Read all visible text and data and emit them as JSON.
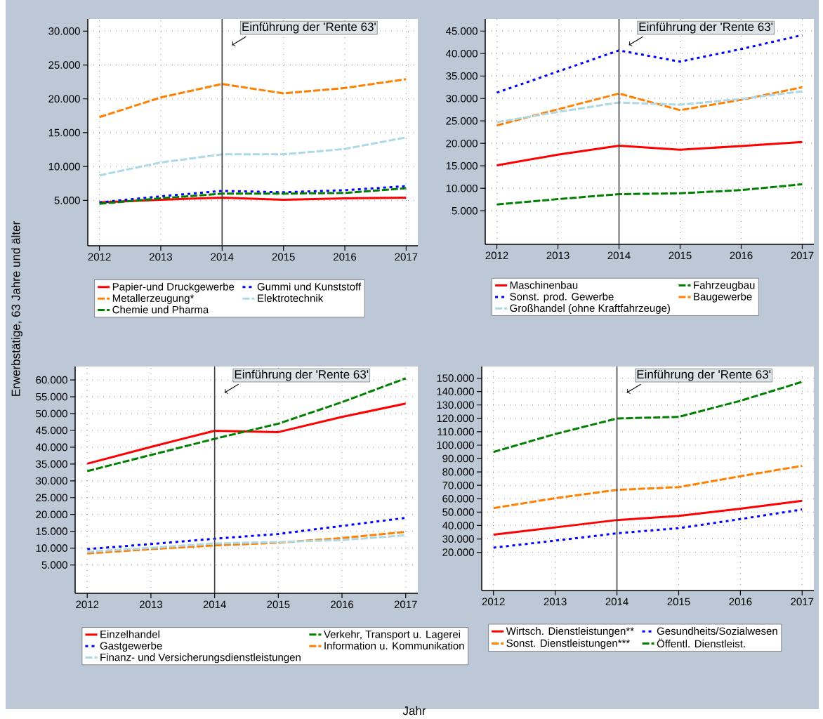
{
  "chart_data": [
    {
      "type": "line",
      "ylabel": "Erwerbstätige, 63 Jahre und älter",
      "x": [
        2012,
        2013,
        2014,
        2015,
        2016,
        2017
      ],
      "xlim": [
        2011.81,
        2017.19
      ],
      "ylim": [
        -1700,
        31800
      ],
      "xticks": [
        2012,
        2013,
        2014,
        2015,
        2016,
        2017
      ],
      "yticks": [
        {
          "value": 5000,
          "label": "5.000"
        },
        {
          "value": 10000,
          "label": "10.000"
        },
        {
          "value": 15000,
          "label": "15.000"
        },
        {
          "value": 20000,
          "label": "20.000"
        },
        {
          "value": 25000,
          "label": "25.000"
        },
        {
          "value": 30000,
          "label": "30.000"
        }
      ],
      "grid": true,
      "legend": "bottom",
      "ref_lines": [
        {
          "axis": "x",
          "value": 2014,
          "label": "Einführung der 'Rente 63'"
        }
      ],
      "series": [
        {
          "name": "Papier-und Druckgewerbe",
          "color": "#ff0000",
          "line_style": "solid",
          "values": [
            4700,
            5100,
            5400,
            5100,
            5300,
            5400
          ]
        },
        {
          "name": "Gummi und Kunststoff",
          "color": "#0000ff",
          "line_style": "dotted",
          "values": [
            4700,
            5600,
            6400,
            6200,
            6500,
            7100
          ]
        },
        {
          "name": "Metallerzeugung*",
          "color": "#ff8000",
          "line_style": "dashed",
          "values": [
            17300,
            20200,
            22200,
            20800,
            21600,
            22900
          ]
        },
        {
          "name": "Elektrotechnik",
          "color": "#add8e6",
          "line_style": "dashed",
          "values": [
            8700,
            10600,
            11800,
            11800,
            12600,
            14300
          ]
        },
        {
          "name": "Chemie und Pharma",
          "color": "#008000",
          "line_style": "dashed",
          "values": [
            4500,
            5300,
            6000,
            6000,
            6100,
            6800
          ]
        }
      ]
    },
    {
      "type": "line",
      "x": [
        2012,
        2013,
        2014,
        2015,
        2016,
        2017
      ],
      "xlim": [
        2011.81,
        2017.19
      ],
      "ylim": [
        -2470,
        47700
      ],
      "xticks": [
        2012,
        2013,
        2014,
        2015,
        2016,
        2017
      ],
      "yticks": [
        {
          "value": 5000,
          "label": "5.000"
        },
        {
          "value": 10000,
          "label": "10.000"
        },
        {
          "value": 15000,
          "label": "15.000"
        },
        {
          "value": 20000,
          "label": "20.000"
        },
        {
          "value": 25000,
          "label": "25.000"
        },
        {
          "value": 30000,
          "label": "30.000"
        },
        {
          "value": 35000,
          "label": "35.000"
        },
        {
          "value": 40000,
          "label": "40.000"
        },
        {
          "value": 45000,
          "label": "45.000"
        }
      ],
      "grid": true,
      "legend": "bottom",
      "ref_lines": [
        {
          "axis": "x",
          "value": 2014,
          "label": "Einführung der 'Rente 63'"
        }
      ],
      "series": [
        {
          "name": "Maschinenbau",
          "color": "#ff0000",
          "line_style": "solid",
          "values": [
            15100,
            17500,
            19500,
            18600,
            19400,
            20300
          ]
        },
        {
          "name": "Fahrzeugbau",
          "color": "#008000",
          "line_style": "dashed",
          "values": [
            6400,
            7600,
            8700,
            8900,
            9600,
            10900
          ]
        },
        {
          "name": "Sonst. prod. Gewerbe",
          "color": "#0000ff",
          "line_style": "dotted",
          "values": [
            31300,
            36000,
            40700,
            38200,
            41000,
            44100
          ]
        },
        {
          "name": "Baugewerbe",
          "color": "#ff8000",
          "line_style": "dashed",
          "values": [
            24000,
            27600,
            31100,
            27400,
            29700,
            32500
          ]
        },
        {
          "name": "Großhandel (ohne Kraftfahrzeuge)",
          "color": "#add8e6",
          "line_style": "dashed",
          "values": [
            24700,
            27000,
            29100,
            28600,
            29900,
            31600
          ]
        }
      ]
    },
    {
      "type": "line",
      "xlabel": "Jahr",
      "x": [
        2012,
        2013,
        2014,
        2015,
        2016,
        2017
      ],
      "xlim": [
        2011.81,
        2017.19
      ],
      "ylim": [
        -3440,
        64000
      ],
      "xticks": [
        2012,
        2013,
        2014,
        2015,
        2016,
        2017
      ],
      "yticks": [
        {
          "value": 5000,
          "label": "5.000"
        },
        {
          "value": 10000,
          "label": "10.000"
        },
        {
          "value": 15000,
          "label": "15.000"
        },
        {
          "value": 20000,
          "label": "20.000"
        },
        {
          "value": 25000,
          "label": "25.000"
        },
        {
          "value": 30000,
          "label": "30.000"
        },
        {
          "value": 35000,
          "label": "35.000"
        },
        {
          "value": 40000,
          "label": "40.000"
        },
        {
          "value": 45000,
          "label": "45.000"
        },
        {
          "value": 50000,
          "label": "50.000"
        },
        {
          "value": 55000,
          "label": "55.000"
        },
        {
          "value": 60000,
          "label": "60.000"
        }
      ],
      "grid": true,
      "legend": "bottom",
      "ref_lines": [
        {
          "axis": "x",
          "value": 2014,
          "label": "Einführung der 'Rente 63'"
        }
      ],
      "series": [
        {
          "name": "Einzelhandel",
          "color": "#ff0000",
          "line_style": "solid",
          "values": [
            35100,
            40100,
            44900,
            44500,
            49000,
            53000
          ]
        },
        {
          "name": "Verkehr, Transport u. Lagerei",
          "color": "#008000",
          "line_style": "dashed",
          "values": [
            32900,
            37700,
            42500,
            47000,
            53400,
            60500
          ]
        },
        {
          "name": "Gastgewerbe",
          "color": "#0000ff",
          "line_style": "dotted",
          "values": [
            9700,
            11200,
            12800,
            14200,
            16600,
            19000
          ]
        },
        {
          "name": "Information u. Kommunikation",
          "color": "#ff8000",
          "line_style": "dashed",
          "values": [
            8400,
            9700,
            10800,
            11600,
            13000,
            14800
          ]
        },
        {
          "name": "Finanz- und Versicherungsdienstleistungen",
          "color": "#add8e6",
          "line_style": "dashed",
          "values": [
            8900,
            10100,
            11400,
            11800,
            12400,
            13800
          ]
        }
      ]
    },
    {
      "type": "line",
      "x": [
        2012,
        2013,
        2014,
        2015,
        2016,
        2017
      ],
      "xlim": [
        2011.81,
        2017.19
      ],
      "ylim": [
        -8500,
        158700
      ],
      "xticks": [
        2012,
        2013,
        2014,
        2015,
        2016,
        2017
      ],
      "yticks": [
        {
          "value": 20000,
          "label": "20.000"
        },
        {
          "value": 30000,
          "label": "30.000"
        },
        {
          "value": 40000,
          "label": "40.000"
        },
        {
          "value": 50000,
          "label": "50.000"
        },
        {
          "value": 60000,
          "label": "60.000"
        },
        {
          "value": 70000,
          "label": "70.000"
        },
        {
          "value": 80000,
          "label": "80.000"
        },
        {
          "value": 90000,
          "label": "90.000"
        },
        {
          "value": 100000,
          "label": "100.000"
        },
        {
          "value": 110000,
          "label": "110.000"
        },
        {
          "value": 120000,
          "label": "120.000"
        },
        {
          "value": 130000,
          "label": "130.000"
        },
        {
          "value": 140000,
          "label": "140.000"
        },
        {
          "value": 150000,
          "label": "150.000"
        }
      ],
      "grid": true,
      "legend": "bottom",
      "ref_lines": [
        {
          "axis": "x",
          "value": 2014,
          "label": "Einführung der 'Rente 63'"
        }
      ],
      "series": [
        {
          "name": "Wirtsch. Dienstleistungen**",
          "color": "#ff0000",
          "line_style": "solid",
          "values": [
            33200,
            38600,
            44100,
            47200,
            52600,
            58400
          ]
        },
        {
          "name": "Gesundheits/Sozialwesen",
          "color": "#0000ff",
          "line_style": "dotted",
          "values": [
            23500,
            28700,
            34200,
            38000,
            44800,
            52000
          ]
        },
        {
          "name": "Sonst. Dienstleistungen***",
          "color": "#ff8000",
          "line_style": "dashed",
          "values": [
            53000,
            60400,
            66600,
            68700,
            76800,
            84600
          ]
        },
        {
          "name": "Öffentl. Dienstleist.",
          "color": "#008000",
          "line_style": "dashed",
          "values": [
            94900,
            108300,
            119900,
            121100,
            133100,
            147300
          ]
        }
      ]
    }
  ]
}
